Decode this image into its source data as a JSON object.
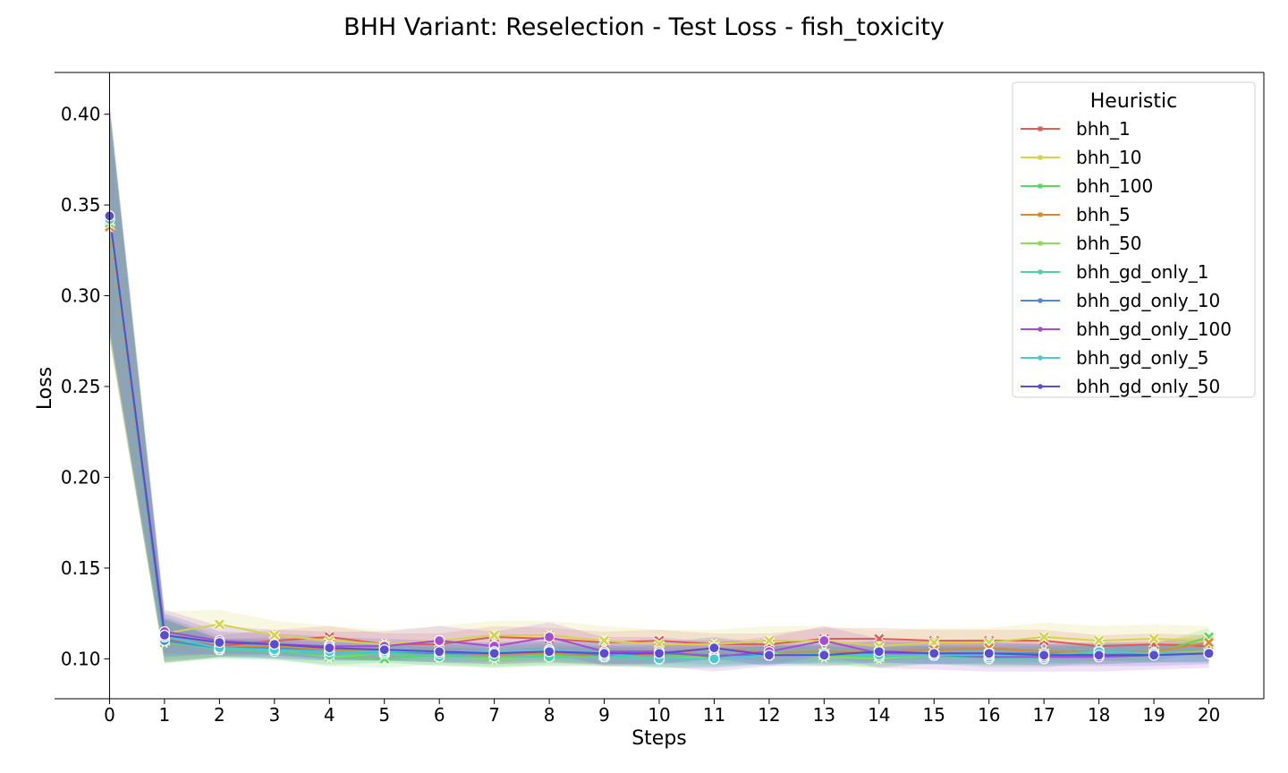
{
  "chart_data": {
    "type": "line",
    "title": "BHH Variant: Reselection - Test Loss - fish_toxicity",
    "xlabel": "Steps",
    "ylabel": "Loss",
    "xlim": [
      -1,
      21
    ],
    "ylim": [
      0.078,
      0.423
    ],
    "x": [
      0,
      1,
      2,
      3,
      4,
      5,
      6,
      7,
      8,
      9,
      10,
      11,
      12,
      13,
      14,
      15,
      16,
      17,
      18,
      19,
      20
    ],
    "x_ticks": [
      "0",
      "1",
      "2",
      "3",
      "4",
      "5",
      "6",
      "7",
      "8",
      "9",
      "10",
      "11",
      "12",
      "13",
      "14",
      "15",
      "16",
      "17",
      "18",
      "19",
      "20"
    ],
    "y_ticks": [
      "0.10",
      "0.15",
      "0.20",
      "0.25",
      "0.30",
      "0.35",
      "0.40"
    ],
    "y_tick_values": [
      0.1,
      0.15,
      0.2,
      0.25,
      0.3,
      0.35,
      0.4
    ],
    "grid": false,
    "legend": {
      "title": "Heuristic",
      "position": "top-right"
    },
    "series": [
      {
        "name": "bhh_1",
        "color": "#db5f57",
        "marker": "x",
        "band": 0.006,
        "values": [
          0.338,
          0.111,
          0.107,
          0.11,
          0.112,
          0.108,
          0.108,
          0.112,
          0.111,
          0.109,
          0.11,
          0.108,
          0.108,
          0.111,
          0.111,
          0.11,
          0.11,
          0.11,
          0.107,
          0.108,
          0.107
        ]
      },
      {
        "name": "bhh_10",
        "color": "#d3d34c",
        "marker": "x",
        "band": 0.008,
        "values": [
          0.338,
          0.114,
          0.119,
          0.113,
          0.11,
          0.108,
          0.11,
          0.113,
          0.113,
          0.11,
          0.108,
          0.108,
          0.11,
          0.11,
          0.107,
          0.109,
          0.109,
          0.112,
          0.11,
          0.111,
          0.11
        ]
      },
      {
        "name": "bhh_100",
        "color": "#57db5f",
        "marker": "x",
        "band": 0.005,
        "values": [
          0.34,
          0.109,
          0.106,
          0.105,
          0.101,
          0.1,
          0.102,
          0.1,
          0.102,
          0.102,
          0.102,
          0.101,
          0.102,
          0.102,
          0.1,
          0.103,
          0.101,
          0.102,
          0.102,
          0.103,
          0.112
        ]
      },
      {
        "name": "bhh_5",
        "color": "#db8a2e",
        "marker": "x",
        "band": 0.005,
        "values": [
          0.338,
          0.11,
          0.106,
          0.107,
          0.105,
          0.104,
          0.103,
          0.102,
          0.103,
          0.101,
          0.102,
          0.106,
          0.103,
          0.104,
          0.104,
          0.105,
          0.106,
          0.104,
          0.104,
          0.104,
          0.109
        ]
      },
      {
        "name": "bhh_50",
        "color": "#8ddb57",
        "marker": "x",
        "band": 0.005,
        "values": [
          0.34,
          0.11,
          0.105,
          0.105,
          0.101,
          0.103,
          0.101,
          0.1,
          0.101,
          0.101,
          0.1,
          0.101,
          0.103,
          0.101,
          0.1,
          0.102,
          0.101,
          0.101,
          0.102,
          0.103,
          0.104
        ]
      },
      {
        "name": "bhh_gd_only_1",
        "color": "#4cd39d",
        "marker": "o",
        "band": 0.005,
        "values": [
          0.342,
          0.11,
          0.105,
          0.104,
          0.102,
          0.103,
          0.101,
          0.101,
          0.101,
          0.101,
          0.1,
          0.1,
          0.102,
          0.102,
          0.101,
          0.102,
          0.1,
          0.1,
          0.104,
          0.103,
          0.103
        ]
      },
      {
        "name": "bhh_gd_only_10",
        "color": "#4c8ad3",
        "marker": "o",
        "band": 0.005,
        "values": [
          0.342,
          0.11,
          0.106,
          0.106,
          0.104,
          0.104,
          0.103,
          0.103,
          0.104,
          0.102,
          0.103,
          0.102,
          0.102,
          0.103,
          0.103,
          0.102,
          0.103,
          0.103,
          0.102,
          0.103,
          0.103
        ]
      },
      {
        "name": "bhh_gd_only_100",
        "color": "#a54cd3",
        "marker": "o",
        "band": 0.008,
        "values": [
          0.344,
          0.115,
          0.11,
          0.108,
          0.107,
          0.107,
          0.11,
          0.107,
          0.112,
          0.104,
          0.104,
          0.101,
          0.104,
          0.11,
          0.103,
          0.102,
          0.101,
          0.101,
          0.101,
          0.102,
          0.103
        ]
      },
      {
        "name": "bhh_gd_only_5",
        "color": "#4cc8d3",
        "marker": "o",
        "band": 0.005,
        "values": [
          0.342,
          0.112,
          0.106,
          0.105,
          0.104,
          0.104,
          0.104,
          0.104,
          0.105,
          0.103,
          0.1,
          0.1,
          0.102,
          0.103,
          0.102,
          0.102,
          0.102,
          0.102,
          0.104,
          0.103,
          0.103
        ]
      },
      {
        "name": "bhh_gd_only_50",
        "color": "#5a4cd3",
        "marker": "o",
        "band": 0.006,
        "values": [
          0.344,
          0.113,
          0.109,
          0.108,
          0.106,
          0.105,
          0.104,
          0.103,
          0.104,
          0.103,
          0.103,
          0.106,
          0.102,
          0.102,
          0.104,
          0.103,
          0.103,
          0.102,
          0.102,
          0.102,
          0.103
        ]
      }
    ]
  }
}
